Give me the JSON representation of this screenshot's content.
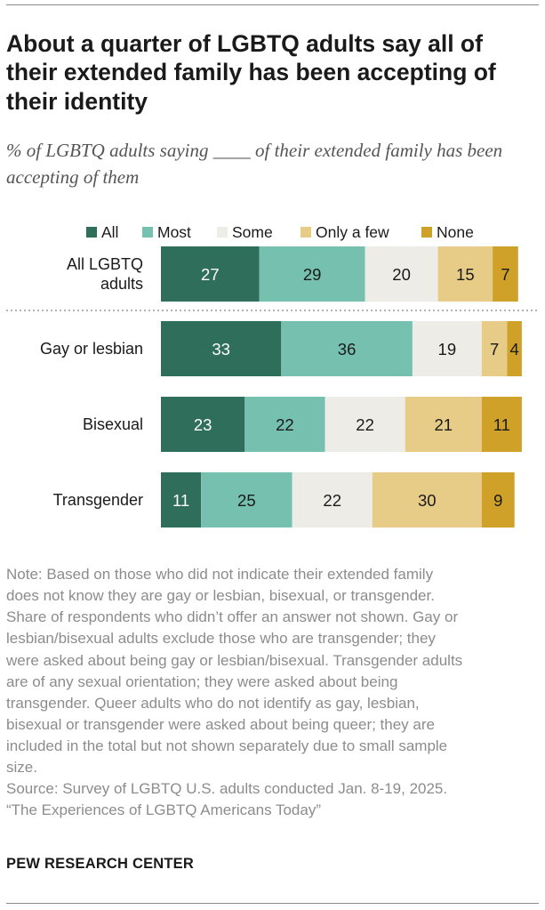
{
  "title": "About a quarter of LGBTQ adults say all of their extended family has been accepting of their identity",
  "subtitle": "% of LGBTQ adults saying ____ of their extended family has been accepting of them",
  "chart_data": {
    "type": "bar",
    "orientation": "horizontal",
    "stacked": true,
    "categories": [
      "All LGBTQ adults",
      "Gay or lesbian",
      "Bisexual",
      "Transgender"
    ],
    "category_label_lines": [
      [
        "All LGBTQ",
        "adults"
      ],
      [
        "Gay or lesbian"
      ],
      [
        "Bisexual"
      ],
      [
        "Transgender"
      ]
    ],
    "series": [
      {
        "name": "All",
        "color": "#2f6e5b",
        "label_color": "#ffffff",
        "values": [
          27,
          33,
          23,
          11
        ]
      },
      {
        "name": "Most",
        "color": "#76c0b0",
        "label_color": "#1a1a1a",
        "values": [
          29,
          36,
          22,
          25
        ]
      },
      {
        "name": "Some",
        "color": "#eeece6",
        "label_color": "#1a1a1a",
        "values": [
          20,
          19,
          22,
          22
        ]
      },
      {
        "name": "Only a few",
        "color": "#e6cc86",
        "label_color": "#1a1a1a",
        "values": [
          15,
          7,
          21,
          30
        ]
      },
      {
        "name": "None",
        "color": "#cfa128",
        "label_color": "#1a1a1a",
        "values": [
          7,
          4,
          11,
          9
        ]
      }
    ],
    "xlim": [
      0,
      100
    ],
    "legend": "top",
    "divider_after": "All LGBTQ adults"
  },
  "note_lines": [
    "Note: Based on those who did not indicate their extended family",
    "does not know they are gay or lesbian, bisexual, or transgender.",
    "Share of respondents who didn’t offer an answer not shown. Gay or",
    "lesbian/bisexual adults exclude those who are transgender; they",
    "were asked about being gay or lesbian/bisexual. Transgender adults",
    "are of any sexual orientation; they were asked about being",
    "transgender. Queer adults who do not identify as gay, lesbian,",
    "bisexual or transgender were asked about being queer; they are",
    "included in the total but not shown separately due to small sample",
    "size.",
    "Source: Survey of LGBTQ U.S. adults conducted Jan. 8-19, 2025.",
    "“The Experiences of LGBTQ Americans Today”"
  ],
  "source_org": "PEW RESEARCH CENTER"
}
